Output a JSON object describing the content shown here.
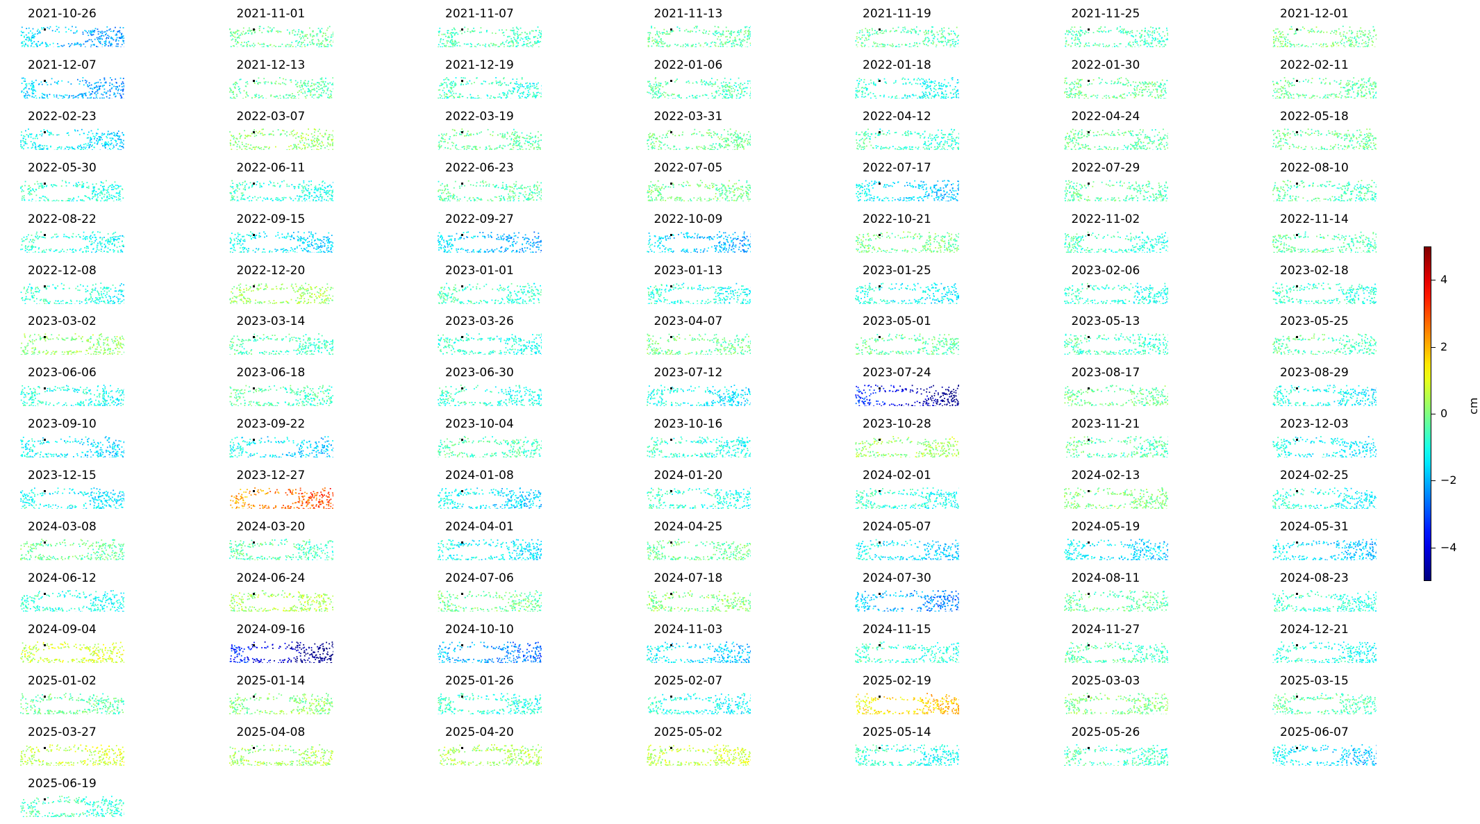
{
  "chart_data": {
    "type": "heatmap",
    "title": "",
    "xlabel": "",
    "ylabel": "",
    "colormap": "jet",
    "colorbar": {
      "label": "cm",
      "vmin": -5,
      "vmax": 5,
      "ticks": [
        4,
        2,
        0,
        -2,
        -4
      ],
      "tick_labels": [
        "4",
        "2",
        "0",
        "−2",
        "−4"
      ],
      "colors": [
        "#00007f",
        "#0000ff",
        "#0080ff",
        "#00ffff",
        "#80ff80",
        "#ffff00",
        "#ff8000",
        "#ff0000",
        "#7f0000"
      ]
    },
    "layout": {
      "columns": 7,
      "rows": 16
    },
    "panels": [
      {
        "date": "2021-10-26",
        "mean_cm": -1.9
      },
      {
        "date": "2021-11-01",
        "mean_cm": -0.3
      },
      {
        "date": "2021-11-07",
        "mean_cm": -0.5
      },
      {
        "date": "2021-11-13",
        "mean_cm": -0.3
      },
      {
        "date": "2021-11-19",
        "mean_cm": -0.4
      },
      {
        "date": "2021-11-25",
        "mean_cm": -0.5
      },
      {
        "date": "2021-12-01",
        "mean_cm": -0.1
      },
      {
        "date": "2021-12-07",
        "mean_cm": -2.0
      },
      {
        "date": "2021-12-13",
        "mean_cm": -0.3
      },
      {
        "date": "2021-12-19",
        "mean_cm": -0.8
      },
      {
        "date": "2022-01-06",
        "mean_cm": -0.5
      },
      {
        "date": "2022-01-18",
        "mean_cm": -1.0
      },
      {
        "date": "2022-01-30",
        "mean_cm": -0.2
      },
      {
        "date": "2022-02-11",
        "mean_cm": -0.3
      },
      {
        "date": "2022-02-23",
        "mean_cm": -1.4
      },
      {
        "date": "2022-03-07",
        "mean_cm": 0.2
      },
      {
        "date": "2022-03-19",
        "mean_cm": -0.3
      },
      {
        "date": "2022-03-31",
        "mean_cm": -0.2
      },
      {
        "date": "2022-04-12",
        "mean_cm": -0.7
      },
      {
        "date": "2022-04-24",
        "mean_cm": -0.3
      },
      {
        "date": "2022-05-18",
        "mean_cm": -0.2
      },
      {
        "date": "2022-05-30",
        "mean_cm": -0.8
      },
      {
        "date": "2022-06-11",
        "mean_cm": -0.9
      },
      {
        "date": "2022-06-23",
        "mean_cm": -0.4
      },
      {
        "date": "2022-07-05",
        "mean_cm": -0.1
      },
      {
        "date": "2022-07-17",
        "mean_cm": -1.6
      },
      {
        "date": "2022-07-29",
        "mean_cm": -0.4
      },
      {
        "date": "2022-08-10",
        "mean_cm": -0.5
      },
      {
        "date": "2022-08-22",
        "mean_cm": -1.0
      },
      {
        "date": "2022-09-15",
        "mean_cm": -1.4
      },
      {
        "date": "2022-09-27",
        "mean_cm": -1.8
      },
      {
        "date": "2022-10-09",
        "mean_cm": -1.8
      },
      {
        "date": "2022-10-21",
        "mean_cm": -0.1
      },
      {
        "date": "2022-11-02",
        "mean_cm": -0.8
      },
      {
        "date": "2022-11-14",
        "mean_cm": -0.4
      },
      {
        "date": "2022-12-08",
        "mean_cm": -0.9
      },
      {
        "date": "2022-12-20",
        "mean_cm": 0.3
      },
      {
        "date": "2023-01-01",
        "mean_cm": -0.7
      },
      {
        "date": "2023-01-13",
        "mean_cm": -1.0
      },
      {
        "date": "2023-01-25",
        "mean_cm": -1.2
      },
      {
        "date": "2023-02-06",
        "mean_cm": -0.9
      },
      {
        "date": "2023-02-18",
        "mean_cm": -0.8
      },
      {
        "date": "2023-03-02",
        "mean_cm": 0.2
      },
      {
        "date": "2023-03-14",
        "mean_cm": -0.6
      },
      {
        "date": "2023-03-26",
        "mean_cm": -0.9
      },
      {
        "date": "2023-04-07",
        "mean_cm": -0.2
      },
      {
        "date": "2023-05-01",
        "mean_cm": -0.3
      },
      {
        "date": "2023-05-13",
        "mean_cm": -0.6
      },
      {
        "date": "2023-05-25",
        "mean_cm": -0.4
      },
      {
        "date": "2023-06-06",
        "mean_cm": -1.0
      },
      {
        "date": "2023-06-18",
        "mean_cm": -0.5
      },
      {
        "date": "2023-06-30",
        "mean_cm": -0.9
      },
      {
        "date": "2023-07-12",
        "mean_cm": -1.3
      },
      {
        "date": "2023-07-24",
        "mean_cm": -4.2
      },
      {
        "date": "2023-08-17",
        "mean_cm": -0.2
      },
      {
        "date": "2023-08-29",
        "mean_cm": -1.2
      },
      {
        "date": "2023-09-10",
        "mean_cm": -1.4
      },
      {
        "date": "2023-09-22",
        "mean_cm": -1.5
      },
      {
        "date": "2023-10-04",
        "mean_cm": -0.5
      },
      {
        "date": "2023-10-16",
        "mean_cm": -0.9
      },
      {
        "date": "2023-10-28",
        "mean_cm": 0.3
      },
      {
        "date": "2023-11-21",
        "mean_cm": -0.4
      },
      {
        "date": "2023-12-03",
        "mean_cm": -1.3
      },
      {
        "date": "2023-12-15",
        "mean_cm": -1.3
      },
      {
        "date": "2023-12-27",
        "mean_cm": 2.6
      },
      {
        "date": "2024-01-08",
        "mean_cm": -1.5
      },
      {
        "date": "2024-01-20",
        "mean_cm": -0.9
      },
      {
        "date": "2024-02-01",
        "mean_cm": -1.0
      },
      {
        "date": "2024-02-13",
        "mean_cm": 0.0
      },
      {
        "date": "2024-02-25",
        "mean_cm": -1.1
      },
      {
        "date": "2024-03-08",
        "mean_cm": -0.3
      },
      {
        "date": "2024-03-20",
        "mean_cm": -0.5
      },
      {
        "date": "2024-04-01",
        "mean_cm": -1.3
      },
      {
        "date": "2024-04-25",
        "mean_cm": -0.2
      },
      {
        "date": "2024-05-07",
        "mean_cm": -1.5
      },
      {
        "date": "2024-05-19",
        "mean_cm": -1.5
      },
      {
        "date": "2024-05-31",
        "mean_cm": -1.6
      },
      {
        "date": "2024-06-12",
        "mean_cm": -1.0
      },
      {
        "date": "2024-06-24",
        "mean_cm": 0.4
      },
      {
        "date": "2024-07-06",
        "mean_cm": -0.2
      },
      {
        "date": "2024-07-18",
        "mean_cm": 0.1
      },
      {
        "date": "2024-07-30",
        "mean_cm": -2.1
      },
      {
        "date": "2024-08-11",
        "mean_cm": -0.3
      },
      {
        "date": "2024-08-23",
        "mean_cm": -0.8
      },
      {
        "date": "2024-09-04",
        "mean_cm": 0.8
      },
      {
        "date": "2024-09-16",
        "mean_cm": -4.3
      },
      {
        "date": "2024-10-10",
        "mean_cm": -2.3
      },
      {
        "date": "2024-11-03",
        "mean_cm": -1.6
      },
      {
        "date": "2024-11-15",
        "mean_cm": -0.8
      },
      {
        "date": "2024-11-27",
        "mean_cm": -0.5
      },
      {
        "date": "2024-12-21",
        "mean_cm": -1.0
      },
      {
        "date": "2025-01-02",
        "mean_cm": -0.3
      },
      {
        "date": "2025-01-14",
        "mean_cm": 0.1
      },
      {
        "date": "2025-01-26",
        "mean_cm": -0.8
      },
      {
        "date": "2025-02-07",
        "mean_cm": -1.1
      },
      {
        "date": "2025-02-19",
        "mean_cm": 1.6
      },
      {
        "date": "2025-03-03",
        "mean_cm": 0.0
      },
      {
        "date": "2025-03-15",
        "mean_cm": -0.4
      },
      {
        "date": "2025-03-27",
        "mean_cm": 0.7
      },
      {
        "date": "2025-04-08",
        "mean_cm": 0.3
      },
      {
        "date": "2025-04-20",
        "mean_cm": 0.4
      },
      {
        "date": "2025-05-02",
        "mean_cm": 0.7
      },
      {
        "date": "2025-05-14",
        "mean_cm": -1.0
      },
      {
        "date": "2025-05-26",
        "mean_cm": -0.6
      },
      {
        "date": "2025-06-07",
        "mean_cm": -1.6
      },
      {
        "date": "2025-06-19",
        "mean_cm": -0.7
      }
    ]
  }
}
